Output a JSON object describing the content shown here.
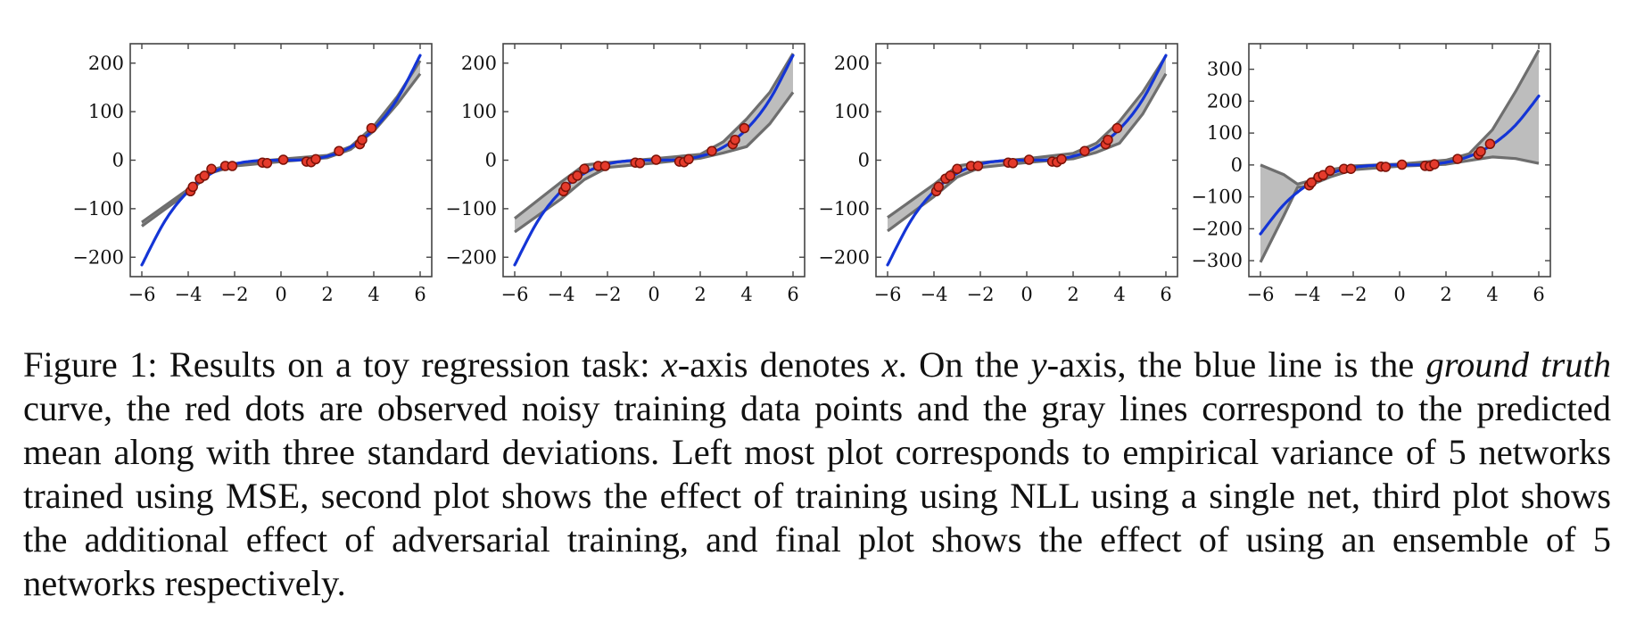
{
  "chart_data": [
    {
      "type": "line",
      "xlim": [
        -6.5,
        6.5
      ],
      "ylim": [
        -240,
        240
      ],
      "x_ticks": [
        -6,
        -4,
        -2,
        0,
        2,
        4,
        6
      ],
      "y_ticks": [
        -200,
        -100,
        0,
        100,
        200
      ],
      "ground_truth": {
        "x": [
          -6,
          -5,
          -4,
          -3,
          -2,
          -1,
          0,
          1,
          2,
          3,
          4,
          5,
          6
        ],
        "y": [
          -216,
          -125,
          -64,
          -27,
          -8,
          -1,
          0,
          1,
          8,
          27,
          64,
          125,
          216
        ]
      },
      "band_upper": {
        "x": [
          -6,
          -4,
          -3,
          -2,
          0,
          2,
          3,
          4,
          5,
          6
        ],
        "y": [
          -128,
          -60,
          -20,
          -7,
          2,
          10,
          28,
          70,
          130,
          205
        ]
      },
      "band_lower": {
        "x": [
          -6,
          -4,
          -3,
          -2,
          0,
          2,
          3,
          4,
          5,
          6
        ],
        "y": [
          -136,
          -66,
          -26,
          -12,
          -3,
          5,
          22,
          60,
          115,
          178
        ]
      },
      "observed_points": {
        "x": [
          -3.9,
          -3.8,
          -3.5,
          -3.3,
          -3.0,
          -2.4,
          -2.1,
          -0.8,
          -0.6,
          0.1,
          1.1,
          1.3,
          1.5,
          2.5,
          3.4,
          3.5,
          3.9
        ],
        "y": [
          -64,
          -55,
          -38,
          -32,
          -18,
          -12,
          -12,
          -5,
          -6,
          1,
          -3,
          -4,
          2,
          19,
          33,
          42,
          66
        ]
      }
    },
    {
      "type": "line",
      "xlim": [
        -6.5,
        6.5
      ],
      "ylim": [
        -240,
        240
      ],
      "x_ticks": [
        -6,
        -4,
        -2,
        0,
        2,
        4,
        6
      ],
      "y_ticks": [
        -200,
        -100,
        0,
        100,
        200
      ],
      "ground_truth": {
        "x": [
          -6,
          -5,
          -4,
          -3,
          -2,
          -1,
          0,
          1,
          2,
          3,
          4,
          5,
          6
        ],
        "y": [
          -216,
          -125,
          -64,
          -27,
          -8,
          -1,
          0,
          1,
          8,
          27,
          64,
          125,
          216
        ]
      },
      "band_upper": {
        "x": [
          -6,
          -4,
          -3,
          -2,
          0,
          2,
          3,
          4,
          5,
          6
        ],
        "y": [
          -120,
          -45,
          -10,
          -5,
          3,
          12,
          38,
          85,
          140,
          220
        ]
      },
      "band_lower": {
        "x": [
          -6,
          -4,
          -3,
          -2,
          0,
          2,
          3,
          4,
          5,
          6
        ],
        "y": [
          -148,
          -80,
          -40,
          -15,
          -6,
          4,
          15,
          28,
          75,
          140
        ]
      },
      "observed_points": {
        "x": [
          -3.9,
          -3.8,
          -3.5,
          -3.3,
          -3.0,
          -2.4,
          -2.1,
          -0.8,
          -0.6,
          0.1,
          1.1,
          1.3,
          1.5,
          2.5,
          3.4,
          3.5,
          3.9
        ],
        "y": [
          -64,
          -55,
          -38,
          -32,
          -18,
          -12,
          -12,
          -5,
          -6,
          1,
          -3,
          -4,
          2,
          19,
          33,
          42,
          66
        ]
      }
    },
    {
      "type": "line",
      "xlim": [
        -6.5,
        6.5
      ],
      "ylim": [
        -240,
        240
      ],
      "x_ticks": [
        -6,
        -4,
        -2,
        0,
        2,
        4,
        6
      ],
      "y_ticks": [
        -200,
        -100,
        0,
        100,
        200
      ],
      "ground_truth": {
        "x": [
          -6,
          -5,
          -4,
          -3,
          -2,
          -1,
          0,
          1,
          2,
          3,
          4,
          5,
          6
        ],
        "y": [
          -216,
          -125,
          -64,
          -27,
          -8,
          -1,
          0,
          1,
          8,
          27,
          64,
          125,
          216
        ]
      },
      "band_upper": {
        "x": [
          -6,
          -4,
          -3,
          -2,
          0,
          2,
          3,
          4,
          5,
          6
        ],
        "y": [
          -118,
          -50,
          -12,
          -5,
          3,
          14,
          35,
          80,
          140,
          215
        ]
      },
      "band_lower": {
        "x": [
          -6,
          -4,
          -3,
          -2,
          0,
          2,
          3,
          4,
          5,
          6
        ],
        "y": [
          -146,
          -75,
          -35,
          -15,
          -5,
          3,
          16,
          35,
          95,
          178
        ]
      },
      "observed_points": {
        "x": [
          -3.9,
          -3.8,
          -3.5,
          -3.3,
          -3.0,
          -2.4,
          -2.1,
          -0.8,
          -0.6,
          0.1,
          1.1,
          1.3,
          1.5,
          2.5,
          3.4,
          3.5,
          3.9
        ],
        "y": [
          -64,
          -55,
          -38,
          -32,
          -18,
          -12,
          -12,
          -5,
          -6,
          1,
          -3,
          -4,
          2,
          19,
          33,
          42,
          66
        ]
      }
    },
    {
      "type": "line",
      "xlim": [
        -6.5,
        6.5
      ],
      "ylim": [
        -350,
        380
      ],
      "x_ticks": [
        -6,
        -4,
        -2,
        0,
        2,
        4,
        6
      ],
      "y_ticks": [
        -300,
        -200,
        -100,
        0,
        100,
        200,
        300
      ],
      "ground_truth": {
        "x": [
          -6,
          -5,
          -4,
          -3,
          -2,
          -1,
          0,
          1,
          2,
          3,
          4,
          5,
          6
        ],
        "y": [
          -216,
          -125,
          -64,
          -27,
          -8,
          -1,
          0,
          1,
          8,
          27,
          64,
          125,
          216
        ]
      },
      "band_upper": {
        "x": [
          -6,
          -5,
          -4.4,
          -4,
          -3,
          -2,
          0,
          2,
          3,
          4,
          5,
          6
        ],
        "y": [
          0,
          -30,
          -60,
          -52,
          -15,
          -3,
          3,
          15,
          35,
          110,
          230,
          360
        ]
      },
      "band_lower": {
        "x": [
          -6,
          -5,
          -4.4,
          -4,
          -3,
          -2,
          0,
          2,
          3,
          4,
          5,
          6
        ],
        "y": [
          -305,
          -160,
          -70,
          -68,
          -38,
          -15,
          -4,
          2,
          14,
          25,
          20,
          5
        ]
      },
      "observed_points": {
        "x": [
          -3.9,
          -3.8,
          -3.5,
          -3.3,
          -3.0,
          -2.4,
          -2.1,
          -0.8,
          -0.6,
          0.1,
          1.1,
          1.3,
          1.5,
          2.5,
          3.4,
          3.5,
          3.9
        ],
        "y": [
          -64,
          -55,
          -38,
          -32,
          -18,
          -12,
          -12,
          -5,
          -6,
          1,
          -3,
          -4,
          2,
          19,
          33,
          42,
          66
        ]
      }
    }
  ],
  "colors": {
    "ground_truth": "#1435d6",
    "band_fill": "#bdbdbd",
    "band_line": "#6e6e6e",
    "point_fill": "#e53b2c",
    "point_edge": "#7a1208",
    "axes": "#444444"
  },
  "caption": {
    "p1": "Figure 1: Results on a toy regression task: ",
    "m1": "x",
    "p2": "-axis denotes ",
    "m2": "x",
    "p3": ". On the ",
    "m3": "y",
    "p4": "-axis, the blue line is the ",
    "it1": "ground truth",
    "p5": " curve, the red dots are observed noisy training data points and the gray lines correspond to the predicted mean along with three standard deviations. Left most plot corresponds to empirical variance of 5 networks trained using MSE, second plot shows the effect of training using NLL using a single net, third plot shows the additional effect of adversarial training, and final plot shows the effect of using an ensemble of 5 networks respectively."
  }
}
